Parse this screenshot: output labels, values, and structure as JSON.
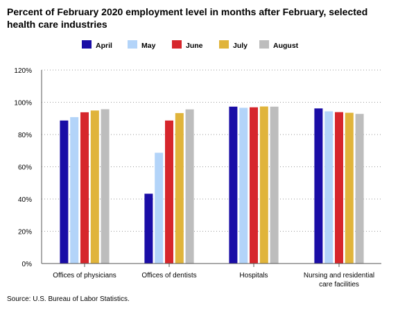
{
  "chart_data": {
    "type": "bar",
    "title": "Percent of February 2020 employment level in months after February, selected health care industries",
    "xlabel": "",
    "ylabel": "",
    "ylim": [
      0,
      120
    ],
    "yticks": [
      0,
      20,
      40,
      60,
      80,
      100,
      120
    ],
    "ytick_suffix": "%",
    "grid": true,
    "legend_position": "top",
    "categories": [
      "Offices of physicians",
      "Offices of dentists",
      "Hospitals",
      "Nursing and residential care facilities"
    ],
    "series": [
      {
        "name": "April",
        "color": "#1a0da6",
        "values": [
          88.7,
          43.3,
          97.3,
          96.2
        ]
      },
      {
        "name": "May",
        "color": "#b3d4f9",
        "values": [
          90.8,
          68.7,
          96.6,
          94.4
        ]
      },
      {
        "name": "June",
        "color": "#d6262c",
        "values": [
          93.8,
          88.7,
          96.9,
          93.9
        ]
      },
      {
        "name": "July",
        "color": "#e0b43b",
        "values": [
          94.9,
          93.3,
          97.4,
          93.5
        ]
      },
      {
        "name": "August",
        "color": "#bdbdbd",
        "values": [
          95.7,
          95.6,
          97.3,
          92.8
        ]
      }
    ],
    "source": "Source: U.S. Bureau of Labor Statistics."
  }
}
